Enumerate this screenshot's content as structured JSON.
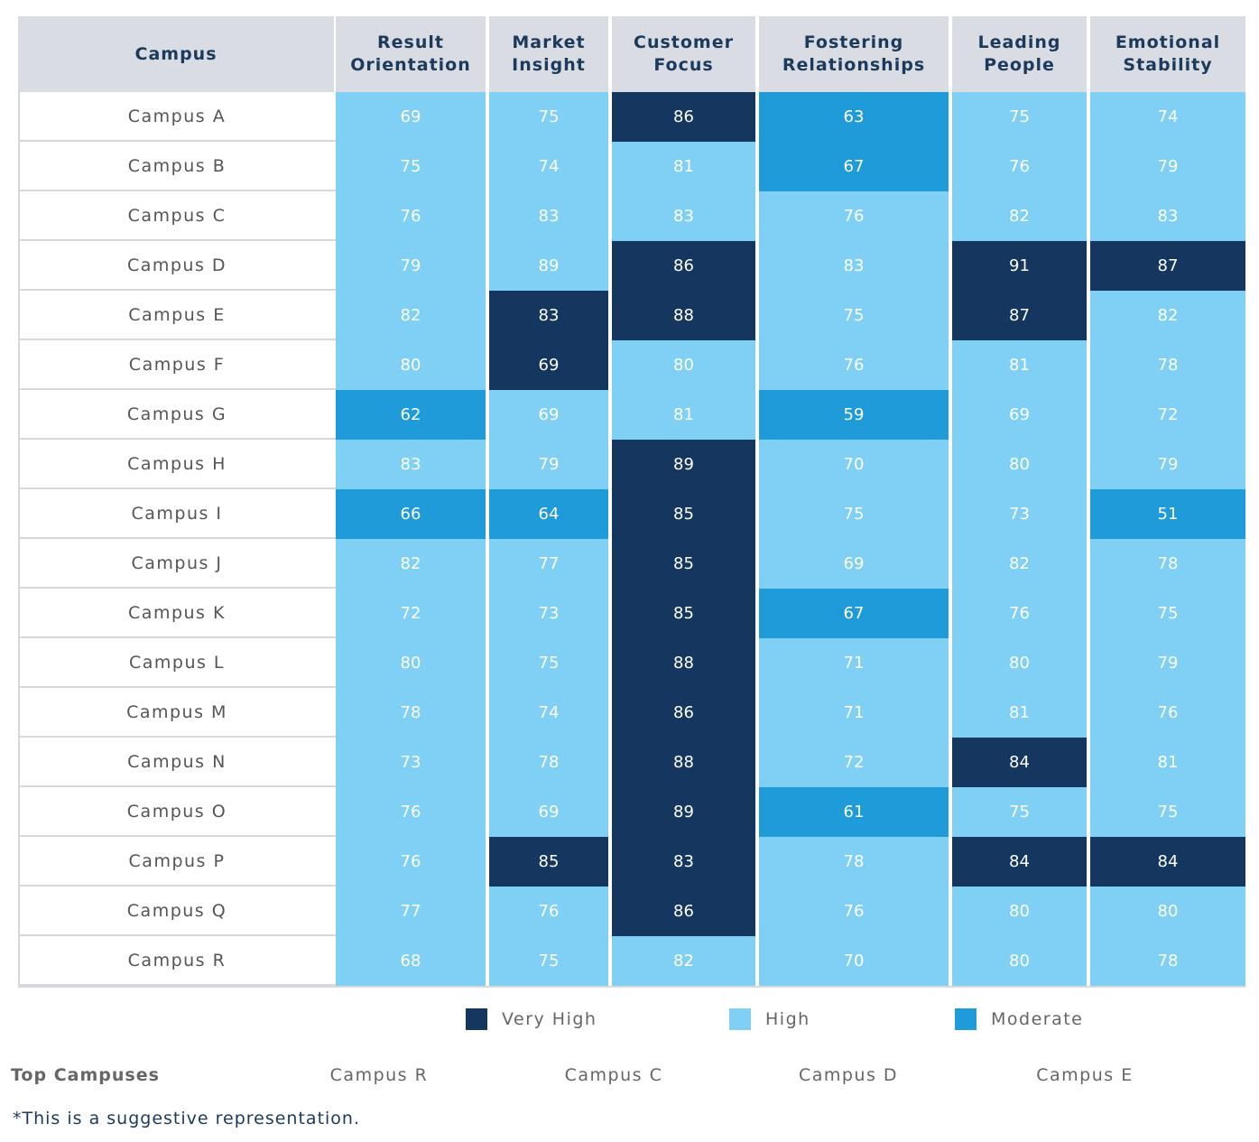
{
  "table": {
    "header": [
      "Campus",
      "Result Orientation",
      "Market Insight",
      "Customer Focus",
      "Fostering Relationships",
      "Leading People",
      "Emotional Stability"
    ],
    "rows": [
      {
        "name": "Campus A",
        "values": [
          69,
          75,
          86,
          63,
          75,
          74
        ],
        "levels": [
          1,
          1,
          0,
          2,
          1,
          1
        ]
      },
      {
        "name": "Campus B",
        "values": [
          75,
          74,
          81,
          67,
          76,
          79
        ],
        "levels": [
          1,
          1,
          1,
          2,
          1,
          1
        ]
      },
      {
        "name": "Campus C",
        "values": [
          76,
          83,
          83,
          76,
          82,
          83
        ],
        "levels": [
          1,
          1,
          1,
          1,
          1,
          1
        ]
      },
      {
        "name": "Campus D",
        "values": [
          79,
          89,
          86,
          83,
          91,
          87
        ],
        "levels": [
          1,
          1,
          0,
          1,
          0,
          0
        ]
      },
      {
        "name": "Campus E",
        "values": [
          82,
          83,
          88,
          75,
          87,
          82
        ],
        "levels": [
          1,
          0,
          0,
          1,
          0,
          1
        ]
      },
      {
        "name": "Campus F",
        "values": [
          80,
          69,
          80,
          76,
          81,
          78
        ],
        "levels": [
          1,
          0,
          1,
          1,
          1,
          1
        ]
      },
      {
        "name": "Campus G",
        "values": [
          62,
          69,
          81,
          59,
          69,
          72
        ],
        "levels": [
          2,
          1,
          1,
          2,
          1,
          1
        ]
      },
      {
        "name": "Campus H",
        "values": [
          83,
          79,
          89,
          70,
          80,
          79
        ],
        "levels": [
          1,
          1,
          0,
          1,
          1,
          1
        ]
      },
      {
        "name": "Campus I",
        "values": [
          66,
          64,
          85,
          75,
          73,
          51
        ],
        "levels": [
          2,
          2,
          0,
          1,
          1,
          2
        ]
      },
      {
        "name": "Campus J",
        "values": [
          82,
          77,
          85,
          69,
          82,
          78
        ],
        "levels": [
          1,
          1,
          0,
          1,
          1,
          1
        ]
      },
      {
        "name": "Campus K",
        "values": [
          72,
          73,
          85,
          67,
          76,
          75
        ],
        "levels": [
          1,
          1,
          0,
          2,
          1,
          1
        ]
      },
      {
        "name": "Campus L",
        "values": [
          80,
          75,
          88,
          71,
          80,
          79
        ],
        "levels": [
          1,
          1,
          0,
          1,
          1,
          1
        ]
      },
      {
        "name": "Campus M",
        "values": [
          78,
          74,
          86,
          71,
          81,
          76
        ],
        "levels": [
          1,
          1,
          0,
          1,
          1,
          1
        ]
      },
      {
        "name": "Campus N",
        "values": [
          73,
          78,
          88,
          72,
          84,
          81
        ],
        "levels": [
          1,
          1,
          0,
          1,
          0,
          1
        ]
      },
      {
        "name": "Campus O",
        "values": [
          76,
          69,
          89,
          61,
          75,
          75
        ],
        "levels": [
          1,
          1,
          0,
          2,
          1,
          1
        ]
      },
      {
        "name": "Campus P",
        "values": [
          76,
          85,
          83,
          78,
          84,
          84
        ],
        "levels": [
          1,
          0,
          0,
          1,
          0,
          0
        ]
      },
      {
        "name": "Campus Q",
        "values": [
          77,
          76,
          86,
          76,
          80,
          80
        ],
        "levels": [
          1,
          1,
          0,
          1,
          1,
          1
        ]
      },
      {
        "name": "Campus R",
        "values": [
          68,
          75,
          82,
          70,
          80,
          78
        ],
        "levels": [
          1,
          1,
          1,
          1,
          1,
          1
        ]
      }
    ]
  },
  "legend": [
    {
      "label": "Very High",
      "color": "#14365f"
    },
    {
      "label": "High",
      "color": "#7fd0f4"
    },
    {
      "label": "Moderate",
      "color": "#1e9bd8"
    }
  ],
  "top_campuses": {
    "label": "Top Campuses",
    "values": [
      "Campus R",
      "Campus C",
      "Campus D",
      "Campus E"
    ]
  },
  "footnote": "*This is a suggestive representation."
}
